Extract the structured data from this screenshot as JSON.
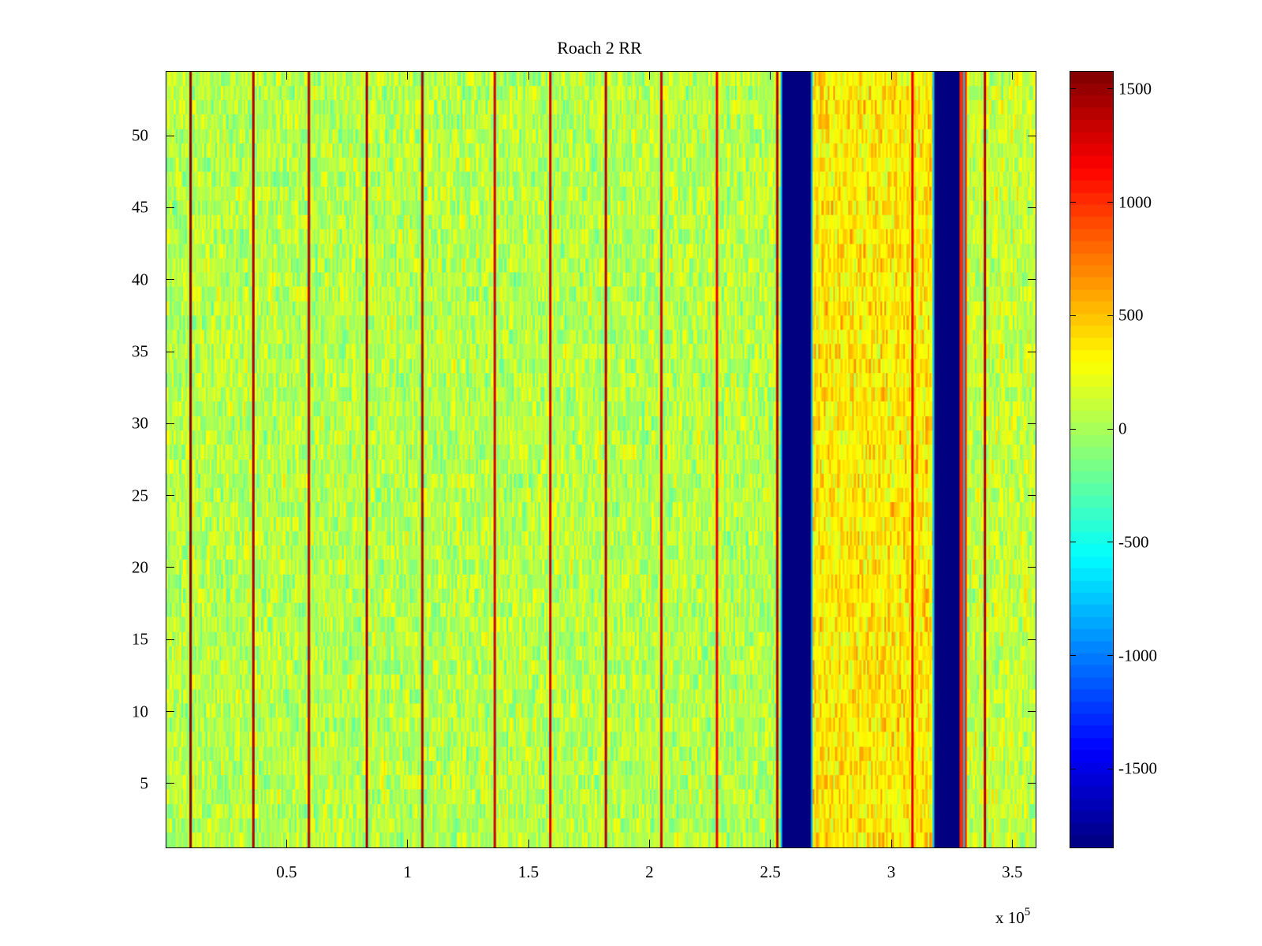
{
  "chart_data": {
    "type": "heatmap",
    "title": "Roach 2 RR",
    "xlabel": "",
    "ylabel": "",
    "x_range": [
      0,
      360000
    ],
    "y_range": [
      0.5,
      54.5
    ],
    "x_ticks": [
      50000,
      100000,
      150000,
      200000,
      250000,
      300000,
      350000
    ],
    "x_tick_labels": [
      "0.5",
      "1",
      "1.5",
      "2",
      "2.5",
      "3",
      "3.5"
    ],
    "x_exponent_label": "x 10",
    "x_exponent_power": "5",
    "y_ticks": [
      5,
      10,
      15,
      20,
      25,
      30,
      35,
      40,
      45,
      50
    ],
    "y_tick_labels": [
      "5",
      "10",
      "15",
      "20",
      "25",
      "30",
      "35",
      "40",
      "45",
      "50"
    ],
    "colorbar": {
      "colormap": "jet",
      "range": [
        -1850,
        1580
      ],
      "ticks": [
        1500,
        1000,
        500,
        0,
        -500,
        -1000,
        -1500
      ],
      "tick_labels": [
        "1500",
        "1000",
        "500",
        "0",
        "-500",
        "-1000",
        "-1500"
      ]
    },
    "background": {
      "description": "noisy values mostly between -500 and 500",
      "regions": [
        {
          "x_range": [
            0,
            254000
          ],
          "mean_value": 50,
          "spread": 350
        },
        {
          "x_range": [
            267000,
            318000
          ],
          "mean_value": 350,
          "spread": 350
        },
        {
          "x_range": [
            330000,
            360000
          ],
          "mean_value": 100,
          "spread": 350
        }
      ]
    },
    "vertical_stripes": [
      {
        "x": 10000,
        "value": 1550
      },
      {
        "x": 36000,
        "value": 1400
      },
      {
        "x": 59000,
        "value": 1400
      },
      {
        "x": 83000,
        "value": 1400
      },
      {
        "x": 106000,
        "value": 1450
      },
      {
        "x": 136000,
        "value": 1300
      },
      {
        "x": 159000,
        "value": 1300
      },
      {
        "x": 182000,
        "value": 1400
      },
      {
        "x": 205000,
        "value": 1300
      },
      {
        "x": 228000,
        "value": 1200
      },
      {
        "x": 253000,
        "value": 1400
      },
      {
        "x": 309000,
        "value": 1200
      },
      {
        "x": 339000,
        "value": 1400
      }
    ],
    "blocks": [
      {
        "x_range": [
          255000,
          267000
        ],
        "value": -1850
      },
      {
        "x_range": [
          318000,
          330000
        ],
        "value": -1850
      },
      {
        "x_range": [
          328500,
          331500
        ],
        "value": 1000
      }
    ]
  }
}
